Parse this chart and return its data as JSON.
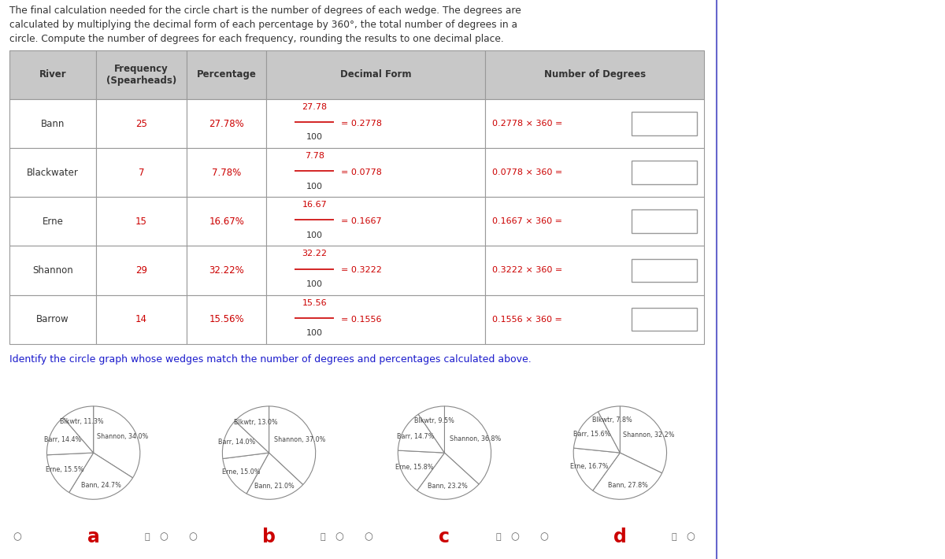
{
  "intro_text_lines": [
    "The final calculation needed for the circle chart is the number of degrees of each wedge. The degrees are",
    "calculated by multiplying the decimal form of each percentage by 360°, the total number of degrees in a",
    "circle. Compute the number of degrees for each frequency, rounding the results to one decimal place."
  ],
  "table_rows": [
    {
      "river": "Bann",
      "freq": "25",
      "pct": "27.78%",
      "num": "27.78",
      "dec": "0.2778",
      "formula": "0.2778 × 360 ="
    },
    {
      "river": "Blackwater",
      "freq": "7",
      "pct": "7.78%",
      "num": "7.78",
      "dec": "0.0778",
      "formula": "0.0778 × 360 ="
    },
    {
      "river": "Erne",
      "freq": "15",
      "pct": "16.67%",
      "num": "16.67",
      "dec": "0.1667",
      "formula": "0.1667 × 360 ="
    },
    {
      "river": "Shannon",
      "freq": "29",
      "pct": "32.22%",
      "num": "32.22",
      "dec": "0.3222",
      "formula": "0.3222 × 360 ="
    },
    {
      "river": "Barrow",
      "freq": "14",
      "pct": "15.56%",
      "num": "15.56",
      "dec": "0.1556",
      "formula": "0.1556 × 360 ="
    }
  ],
  "table_headers": [
    "River",
    "Frequency\n(Spearheads)",
    "Percentage",
    "Decimal Form",
    "Number of Degrees"
  ],
  "identify_text": "Identify the circle graph whose wedges match the number of degrees and percentages calculated above.",
  "pie_charts": [
    {
      "label": "a",
      "slices": [
        {
          "name": "Shannon",
          "pct": 34.0
        },
        {
          "name": "Bann",
          "pct": 24.7
        },
        {
          "name": "Erne",
          "pct": 15.5
        },
        {
          "name": "Barr",
          "pct": 14.4
        },
        {
          "name": "Blkwtr",
          "pct": 11.3
        }
      ]
    },
    {
      "label": "b",
      "slices": [
        {
          "name": "Shannon",
          "pct": 37.0
        },
        {
          "name": "Bann",
          "pct": 21.0
        },
        {
          "name": "Erne",
          "pct": 15.0
        },
        {
          "name": "Barr",
          "pct": 14.0
        },
        {
          "name": "Blkwtr",
          "pct": 13.0
        }
      ]
    },
    {
      "label": "c",
      "slices": [
        {
          "name": "Shannon",
          "pct": 36.8
        },
        {
          "name": "Bann",
          "pct": 23.2
        },
        {
          "name": "Erne",
          "pct": 15.8
        },
        {
          "name": "Barr",
          "pct": 14.7
        },
        {
          "name": "Blkwtr",
          "pct": 9.5
        }
      ]
    },
    {
      "label": "d",
      "slices": [
        {
          "name": "Shannon",
          "pct": 32.2
        },
        {
          "name": "Bann",
          "pct": 27.8
        },
        {
          "name": "Erne",
          "pct": 16.7
        },
        {
          "name": "Barr",
          "pct": 15.6
        },
        {
          "name": "Blkwtr",
          "pct": 7.8
        }
      ]
    }
  ],
  "bg_color": "#ffffff",
  "header_bg": "#c8c8c8",
  "border_color": "#999999",
  "red_color": "#cc0000",
  "text_color": "#333333",
  "identify_color": "#1a1acc",
  "label_color": "#cc0000",
  "pie_edge_color": "#888888",
  "blue_line_color": "#6666cc"
}
